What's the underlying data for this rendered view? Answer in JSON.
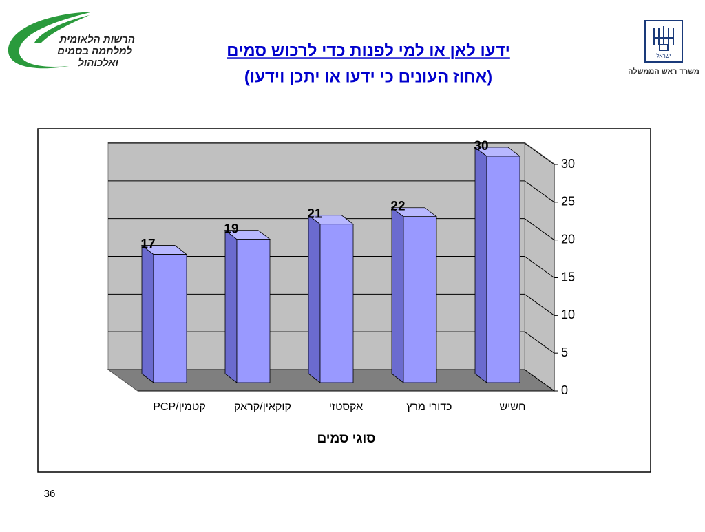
{
  "header": {
    "logo_left": [
      "הרשות הלאומית",
      "למלחמה בסמים",
      "ואלכוהול"
    ],
    "logo_right": {
      "emblem": "ישראל",
      "caption": "משרד ראש הממשלה"
    }
  },
  "chart_data": {
    "type": "bar3d",
    "title": "ידעו לאן או למי לפנות כדי לרכוש סמים",
    "subtitle": "(אחוז העונים כי ידעו או יתכן וידעו)",
    "x_label": "סוגי סמים",
    "categories": [
      "קטמין/PCP",
      "קוקאין/קראק",
      "אקסטזי",
      "כדורי מרץ",
      "חשיש"
    ],
    "values": [
      17,
      19,
      21,
      22,
      30
    ],
    "color": "#9999ff",
    "ylim": [
      0,
      30
    ],
    "yticks": [
      0,
      5,
      10,
      15,
      20,
      25,
      30
    ],
    "grid": true
  },
  "footer": {
    "page_number": "36"
  }
}
